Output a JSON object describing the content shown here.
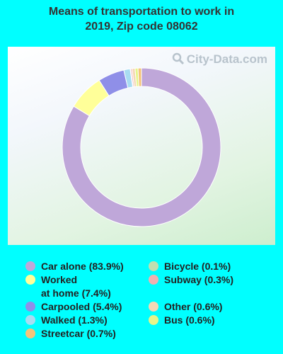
{
  "title_line1": "Means of transportation to work in",
  "title_line2": "2019, Zip code 08062",
  "watermark": "City-Data.com",
  "chart_data": {
    "type": "pie",
    "donut": true,
    "slices": [
      {
        "name": "Car alone",
        "value": 83.9,
        "color": "#bfa7d9"
      },
      {
        "name": "Worked at home",
        "value": 7.4,
        "color": "#ffff99"
      },
      {
        "name": "Carpooled",
        "value": 5.4,
        "color": "#8f8fe8"
      },
      {
        "name": "Walked",
        "value": 1.3,
        "color": "#a8dcf2"
      },
      {
        "name": "Bicycle",
        "value": 0.1,
        "color": "#c2dfb0"
      },
      {
        "name": "Subway",
        "value": 0.3,
        "color": "#f2b0b0"
      },
      {
        "name": "Other",
        "value": 0.6,
        "color": "#f5d8b5"
      },
      {
        "name": "Bus",
        "value": 0.6,
        "color": "#e5f58a"
      },
      {
        "name": "Streetcar",
        "value": 0.7,
        "color": "#f5c47a"
      }
    ]
  },
  "legend": {
    "left": [
      {
        "lines": [
          "Car alone (83.9%)"
        ],
        "color": "#bfa7d9"
      },
      {
        "lines": [
          "Worked",
          "at home (7.4%)"
        ],
        "color": "#ffff99"
      },
      {
        "lines": [
          "Carpooled (5.4%)"
        ],
        "color": "#8f8fe8"
      },
      {
        "lines": [
          "Walked (1.3%)"
        ],
        "color": "#a8dcf2"
      },
      {
        "lines": [
          "Streetcar (0.7%)"
        ],
        "color": "#f5c47a"
      }
    ],
    "right": [
      {
        "lines": [
          "Bicycle (0.1%)"
        ],
        "color": "#c2dfb0"
      },
      {
        "lines": [
          "Subway (0.3%)"
        ],
        "color": "#f2b0b0"
      },
      {
        "lines": [
          ""
        ],
        "color": ""
      },
      {
        "lines": [
          "Other (0.6%)"
        ],
        "color": "#f5d8b5"
      },
      {
        "lines": [
          "Bus (0.6%)"
        ],
        "color": "#e5f58a"
      }
    ]
  }
}
